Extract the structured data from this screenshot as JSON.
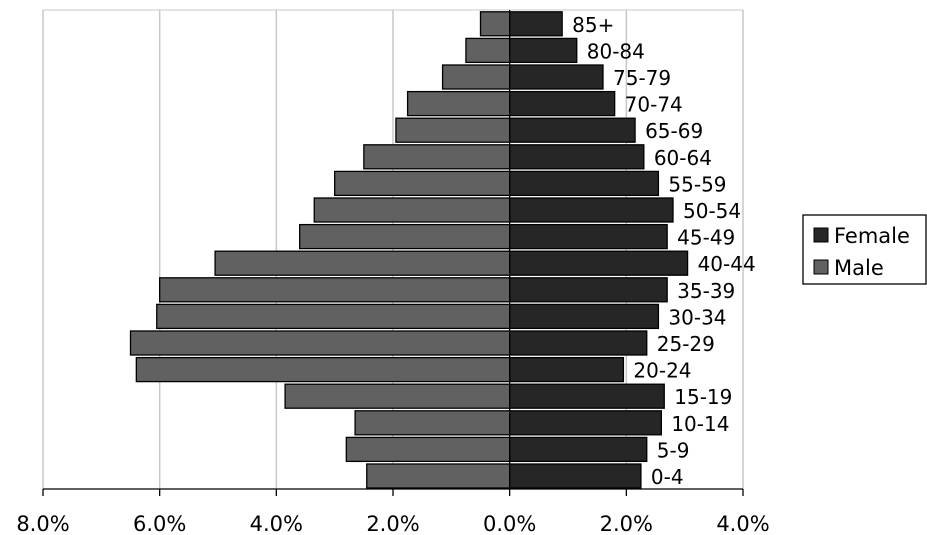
{
  "chart_data": {
    "type": "bar",
    "orientation": "horizontal",
    "categories": [
      "0-4",
      "5-9",
      "10-14",
      "15-19",
      "20-24",
      "25-29",
      "30-34",
      "35-39",
      "40-44",
      "45-49",
      "50-54",
      "55-59",
      "60-64",
      "65-69",
      "70-74",
      "75-79",
      "80-84",
      "85+"
    ],
    "series": [
      {
        "name": "Female",
        "color": "#262626",
        "values": [
          2.25,
          2.35,
          2.6,
          2.65,
          1.95,
          2.35,
          2.55,
          2.7,
          3.05,
          2.7,
          2.8,
          2.55,
          2.3,
          2.15,
          1.8,
          1.6,
          1.15,
          0.9
        ]
      },
      {
        "name": "Male",
        "color": "#616161",
        "values": [
          -2.45,
          -2.8,
          -2.65,
          -3.85,
          -6.4,
          -6.5,
          -6.05,
          -6.0,
          -5.05,
          -3.6,
          -3.35,
          -3.0,
          -2.5,
          -1.95,
          -1.75,
          -1.15,
          -0.75,
          -0.5
        ]
      }
    ],
    "xlim": [
      -8,
      4
    ],
    "x_ticks": [
      -8,
      -6,
      -4,
      -2,
      0,
      2,
      4
    ],
    "x_tick_labels": [
      "8.0%",
      "6.0%",
      "4.0%",
      "2.0%",
      "0.0%",
      "2.0%",
      "4.0%"
    ],
    "grid": true,
    "legend_position": "right",
    "title": "",
    "xlabel": "",
    "ylabel": ""
  }
}
